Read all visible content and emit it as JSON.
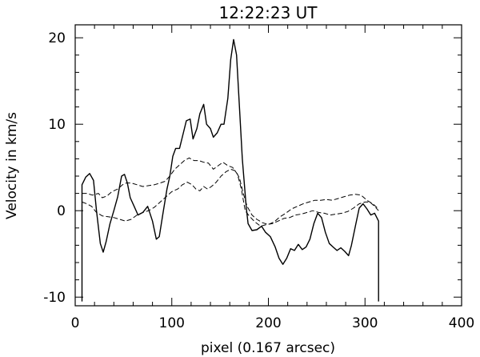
{
  "chart_data": {
    "type": "line",
    "title": "12:22:23 UT",
    "xlabel": "pixel (0.167 arcsec)",
    "ylabel": "Velocity in km/s",
    "xlim": [
      0,
      400
    ],
    "ylim": [
      -11,
      21.5
    ],
    "xticks": [
      0,
      100,
      200,
      300,
      400
    ],
    "yticks": [
      -10,
      0,
      10,
      20
    ],
    "grid": false,
    "legend": "none",
    "series": [
      {
        "style": "solid",
        "color": "#000000",
        "points": [
          [
            7,
            -10.5
          ],
          [
            7,
            3
          ],
          [
            11,
            3.9
          ],
          [
            15,
            4.3
          ],
          [
            19,
            3.5
          ],
          [
            22,
            0
          ],
          [
            26,
            -3.8
          ],
          [
            29,
            -4.8
          ],
          [
            32,
            -3.6
          ],
          [
            36,
            -1.5
          ],
          [
            40,
            0
          ],
          [
            44,
            1.6
          ],
          [
            48,
            4
          ],
          [
            51,
            4.2
          ],
          [
            54,
            3.2
          ],
          [
            57,
            1.5
          ],
          [
            61,
            0.5
          ],
          [
            65,
            -0.5
          ],
          [
            70,
            -0.2
          ],
          [
            75,
            0.5
          ],
          [
            80,
            -1.2
          ],
          [
            84,
            -3.3
          ],
          [
            87,
            -3
          ],
          [
            91,
            -0.2
          ],
          [
            95,
            2.5
          ],
          [
            98,
            4
          ],
          [
            101,
            6.3
          ],
          [
            104,
            7.2
          ],
          [
            108,
            7.2
          ],
          [
            112,
            9
          ],
          [
            115,
            10.4
          ],
          [
            119,
            10.6
          ],
          [
            122,
            8.3
          ],
          [
            126,
            9.5
          ],
          [
            129,
            11.2
          ],
          [
            133,
            12.3
          ],
          [
            136,
            10
          ],
          [
            140,
            9.5
          ],
          [
            143,
            8.5
          ],
          [
            147,
            9
          ],
          [
            151,
            10
          ],
          [
            154,
            10
          ],
          [
            158,
            13
          ],
          [
            161,
            17.5
          ],
          [
            164,
            19.8
          ],
          [
            167,
            18
          ],
          [
            170,
            12
          ],
          [
            173,
            6
          ],
          [
            177,
            0.5
          ],
          [
            179,
            -1.5
          ],
          [
            183,
            -2.3
          ],
          [
            188,
            -2.2
          ],
          [
            193,
            -1.8
          ],
          [
            197,
            -2.5
          ],
          [
            202,
            -3
          ],
          [
            207,
            -4.2
          ],
          [
            211,
            -5.5
          ],
          [
            215,
            -6.2
          ],
          [
            219,
            -5.5
          ],
          [
            223,
            -4.4
          ],
          [
            227,
            -4.6
          ],
          [
            231,
            -3.9
          ],
          [
            235,
            -4.5
          ],
          [
            239,
            -4.2
          ],
          [
            243,
            -3.3
          ],
          [
            247,
            -1.5
          ],
          [
            251,
            -0.3
          ],
          [
            255,
            -0.8
          ],
          [
            259,
            -2.5
          ],
          [
            263,
            -3.8
          ],
          [
            267,
            -4.2
          ],
          [
            271,
            -4.6
          ],
          [
            275,
            -4.3
          ],
          [
            279,
            -4.7
          ],
          [
            283,
            -5.2
          ],
          [
            286,
            -4
          ],
          [
            290,
            -1.8
          ],
          [
            294,
            0.3
          ],
          [
            298,
            0.8
          ],
          [
            302,
            0.2
          ],
          [
            306,
            -0.5
          ],
          [
            310,
            -0.3
          ],
          [
            314,
            -1.2
          ],
          [
            314,
            -10.5
          ]
        ]
      },
      {
        "style": "dashed",
        "color": "#000000",
        "points": [
          [
            7,
            2
          ],
          [
            12,
            2
          ],
          [
            18,
            1.8
          ],
          [
            24,
            2
          ],
          [
            28,
            1.5
          ],
          [
            33,
            1.7
          ],
          [
            38,
            2.2
          ],
          [
            44,
            2.5
          ],
          [
            49,
            3
          ],
          [
            53,
            3.2
          ],
          [
            58,
            3.2
          ],
          [
            64,
            3
          ],
          [
            70,
            2.8
          ],
          [
            76,
            2.9
          ],
          [
            82,
            3
          ],
          [
            88,
            3.2
          ],
          [
            93,
            3.4
          ],
          [
            98,
            4
          ],
          [
            103,
            4.8
          ],
          [
            108,
            5.3
          ],
          [
            113,
            5.8
          ],
          [
            118,
            6.1
          ],
          [
            123,
            5.8
          ],
          [
            128,
            5.8
          ],
          [
            133,
            5.6
          ],
          [
            138,
            5.5
          ],
          [
            143,
            4.8
          ],
          [
            148,
            5.2
          ],
          [
            153,
            5.6
          ],
          [
            158,
            5.2
          ],
          [
            163,
            5
          ],
          [
            168,
            4.2
          ],
          [
            172,
            2.5
          ],
          [
            176,
            0
          ],
          [
            180,
            -0.6
          ],
          [
            186,
            -1.3
          ],
          [
            192,
            -1.8
          ],
          [
            198,
            -1.6
          ],
          [
            204,
            -1.5
          ],
          [
            210,
            -1.2
          ],
          [
            216,
            -0.9
          ],
          [
            222,
            -0.8
          ],
          [
            228,
            -0.5
          ],
          [
            234,
            -0.4
          ],
          [
            240,
            -0.2
          ],
          [
            246,
            0
          ],
          [
            252,
            -0.2
          ],
          [
            258,
            -0.3
          ],
          [
            264,
            -0.5
          ],
          [
            270,
            -0.4
          ],
          [
            276,
            -0.3
          ],
          [
            282,
            -0.1
          ],
          [
            288,
            0.3
          ],
          [
            294,
            0.8
          ],
          [
            300,
            1
          ],
          [
            305,
            1
          ],
          [
            310,
            0.5
          ],
          [
            314,
            0
          ]
        ]
      },
      {
        "style": "dashed",
        "color": "#000000",
        "points": [
          [
            7,
            1
          ],
          [
            12,
            0.8
          ],
          [
            17,
            0.5
          ],
          [
            22,
            -0.2
          ],
          [
            28,
            -0.6
          ],
          [
            34,
            -0.7
          ],
          [
            40,
            -0.8
          ],
          [
            46,
            -1
          ],
          [
            52,
            -1.2
          ],
          [
            58,
            -1
          ],
          [
            64,
            -0.5
          ],
          [
            70,
            -0.2
          ],
          [
            76,
            0
          ],
          [
            82,
            0.4
          ],
          [
            88,
            1
          ],
          [
            94,
            1.6
          ],
          [
            100,
            2.2
          ],
          [
            106,
            2.5
          ],
          [
            111,
            3
          ],
          [
            116,
            3.3
          ],
          [
            121,
            3
          ],
          [
            125,
            2.5
          ],
          [
            129,
            2.3
          ],
          [
            133,
            2.8
          ],
          [
            137,
            2.5
          ],
          [
            141,
            2.8
          ],
          [
            146,
            3.3
          ],
          [
            151,
            4
          ],
          [
            156,
            4.5
          ],
          [
            161,
            4.8
          ],
          [
            166,
            4.6
          ],
          [
            170,
            3.8
          ],
          [
            174,
            2
          ],
          [
            178,
            0.5
          ],
          [
            183,
            -0.5
          ],
          [
            188,
            -1
          ],
          [
            194,
            -1.4
          ],
          [
            200,
            -1.6
          ],
          [
            206,
            -1.3
          ],
          [
            212,
            -0.7
          ],
          [
            218,
            -0.3
          ],
          [
            224,
            0.2
          ],
          [
            230,
            0.5
          ],
          [
            236,
            0.8
          ],
          [
            242,
            1
          ],
          [
            248,
            1.2
          ],
          [
            254,
            1.2
          ],
          [
            260,
            1.3
          ],
          [
            266,
            1.2
          ],
          [
            272,
            1.4
          ],
          [
            278,
            1.6
          ],
          [
            284,
            1.8
          ],
          [
            290,
            1.9
          ],
          [
            296,
            1.8
          ],
          [
            302,
            1.2
          ],
          [
            308,
            0.8
          ],
          [
            314,
            0.2
          ]
        ]
      }
    ]
  }
}
